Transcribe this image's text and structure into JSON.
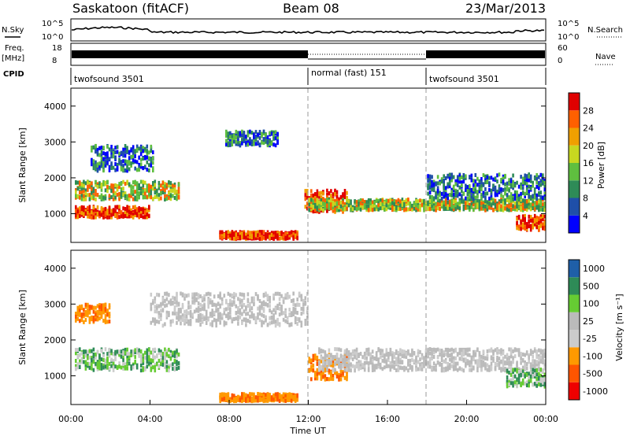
{
  "header": {
    "station": "Saskatoon (fitACF)",
    "beam": "Beam 08",
    "date": "23/Mar/2013"
  },
  "left_labels": {
    "nsky": "N.Sky",
    "freq_top": "Freq.",
    "freq_unit": "[MHz]",
    "cpid": "CPID"
  },
  "right_labels": {
    "nsearch": "N.Search",
    "nave": "Nave"
  },
  "noise_panel": {
    "left_ticks": [
      "10^5",
      "10^0"
    ],
    "right_ticks": [
      "10^5",
      "10^0"
    ]
  },
  "freq_panel": {
    "left_ticks": [
      "18",
      "8"
    ],
    "right_ticks": [
      "60",
      "0"
    ]
  },
  "cpid_segments": [
    {
      "start_hour": 0,
      "end_hour": 12,
      "label": "twofsound 3501"
    },
    {
      "start_hour": 12,
      "end_hour": 18,
      "label": "normal (fast) 151"
    },
    {
      "start_hour": 18,
      "end_hour": 24,
      "label": "twofsound 3501"
    }
  ],
  "colors": {
    "power_scale": [
      "#0000ff",
      "#1f4fa8",
      "#2e8b57",
      "#5fbf3f",
      "#c8d820",
      "#f0a000",
      "#ff6000",
      "#e00000"
    ],
    "velocity_scale": [
      "#ee0000",
      "#ff5500",
      "#ff9900",
      "#cccccc",
      "#bbbbbb",
      "#66cc33",
      "#2e8b57",
      "#1f5fa8"
    ]
  },
  "chart_data": [
    {
      "type": "heatmap",
      "title": "",
      "xlabel": "",
      "ylabel": "Slant Range [km]",
      "xlim": [
        0,
        24
      ],
      "ylim": [
        200,
        4500
      ],
      "y_ticks": [
        "1000",
        "2000",
        "3000",
        "4000"
      ],
      "colorbar": {
        "label": "Power [dB]",
        "ticks": [
          "4",
          "8",
          "12",
          "16",
          "20",
          "24",
          "28"
        ]
      },
      "echo_regions": [
        {
          "hour_start": 0.2,
          "hour_end": 4.0,
          "range_center": 1100,
          "range_width": 300,
          "level": "high"
        },
        {
          "hour_start": 0.2,
          "hour_end": 5.5,
          "range_center": 1700,
          "range_width": 500,
          "level": "medium"
        },
        {
          "hour_start": 1.0,
          "hour_end": 4.2,
          "range_center": 2600,
          "range_width": 700,
          "level": "low"
        },
        {
          "hour_start": 7.5,
          "hour_end": 11.5,
          "range_center": 450,
          "range_width": 200,
          "level": "high"
        },
        {
          "hour_start": 7.8,
          "hour_end": 10.5,
          "range_center": 3150,
          "range_width": 400,
          "level": "low"
        },
        {
          "hour_start": 11.8,
          "hour_end": 14.0,
          "range_center": 1400,
          "range_width": 600,
          "level": "high"
        },
        {
          "hour_start": 12.0,
          "hour_end": 24.0,
          "range_center": 1300,
          "range_width": 300,
          "level": "medium"
        },
        {
          "hour_start": 18.0,
          "hour_end": 24.0,
          "range_center": 1800,
          "range_width": 700,
          "level": "low"
        },
        {
          "hour_start": 22.5,
          "hour_end": 24.0,
          "range_center": 800,
          "range_width": 400,
          "level": "high"
        }
      ]
    },
    {
      "type": "heatmap",
      "title": "",
      "xlabel": "Time UT",
      "ylabel": "Slant Range [km]",
      "xlim": [
        0,
        24
      ],
      "ylim": [
        200,
        4500
      ],
      "x_ticks": [
        "00:00",
        "04:00",
        "08:00",
        "12:00",
        "16:00",
        "20:00",
        "00:00"
      ],
      "y_ticks": [
        "1000",
        "2000",
        "3000",
        "4000"
      ],
      "colorbar": {
        "label": "Velocity [m s⁻¹]",
        "ticks": [
          "1000",
          "500",
          "100",
          "25",
          "-25",
          "-100",
          "-500",
          "-1000"
        ]
      },
      "echo_regions": [
        {
          "hour_start": 0.2,
          "hour_end": 2.0,
          "range_center": 2800,
          "range_width": 500,
          "level": "orange"
        },
        {
          "hour_start": 0.2,
          "hour_end": 5.5,
          "range_center": 1500,
          "range_width": 600,
          "level": "green"
        },
        {
          "hour_start": 4.0,
          "hour_end": 12.0,
          "range_center": 2900,
          "range_width": 900,
          "level": "grey"
        },
        {
          "hour_start": 7.5,
          "hour_end": 11.5,
          "range_center": 450,
          "range_width": 200,
          "level": "orange"
        },
        {
          "hour_start": 12.0,
          "hour_end": 14.0,
          "range_center": 1300,
          "range_width": 700,
          "level": "orange"
        },
        {
          "hour_start": 12.5,
          "hour_end": 24.0,
          "range_center": 1500,
          "range_width": 600,
          "level": "grey"
        },
        {
          "hour_start": 22.0,
          "hour_end": 24.0,
          "range_center": 1000,
          "range_width": 500,
          "level": "green"
        }
      ]
    }
  ]
}
